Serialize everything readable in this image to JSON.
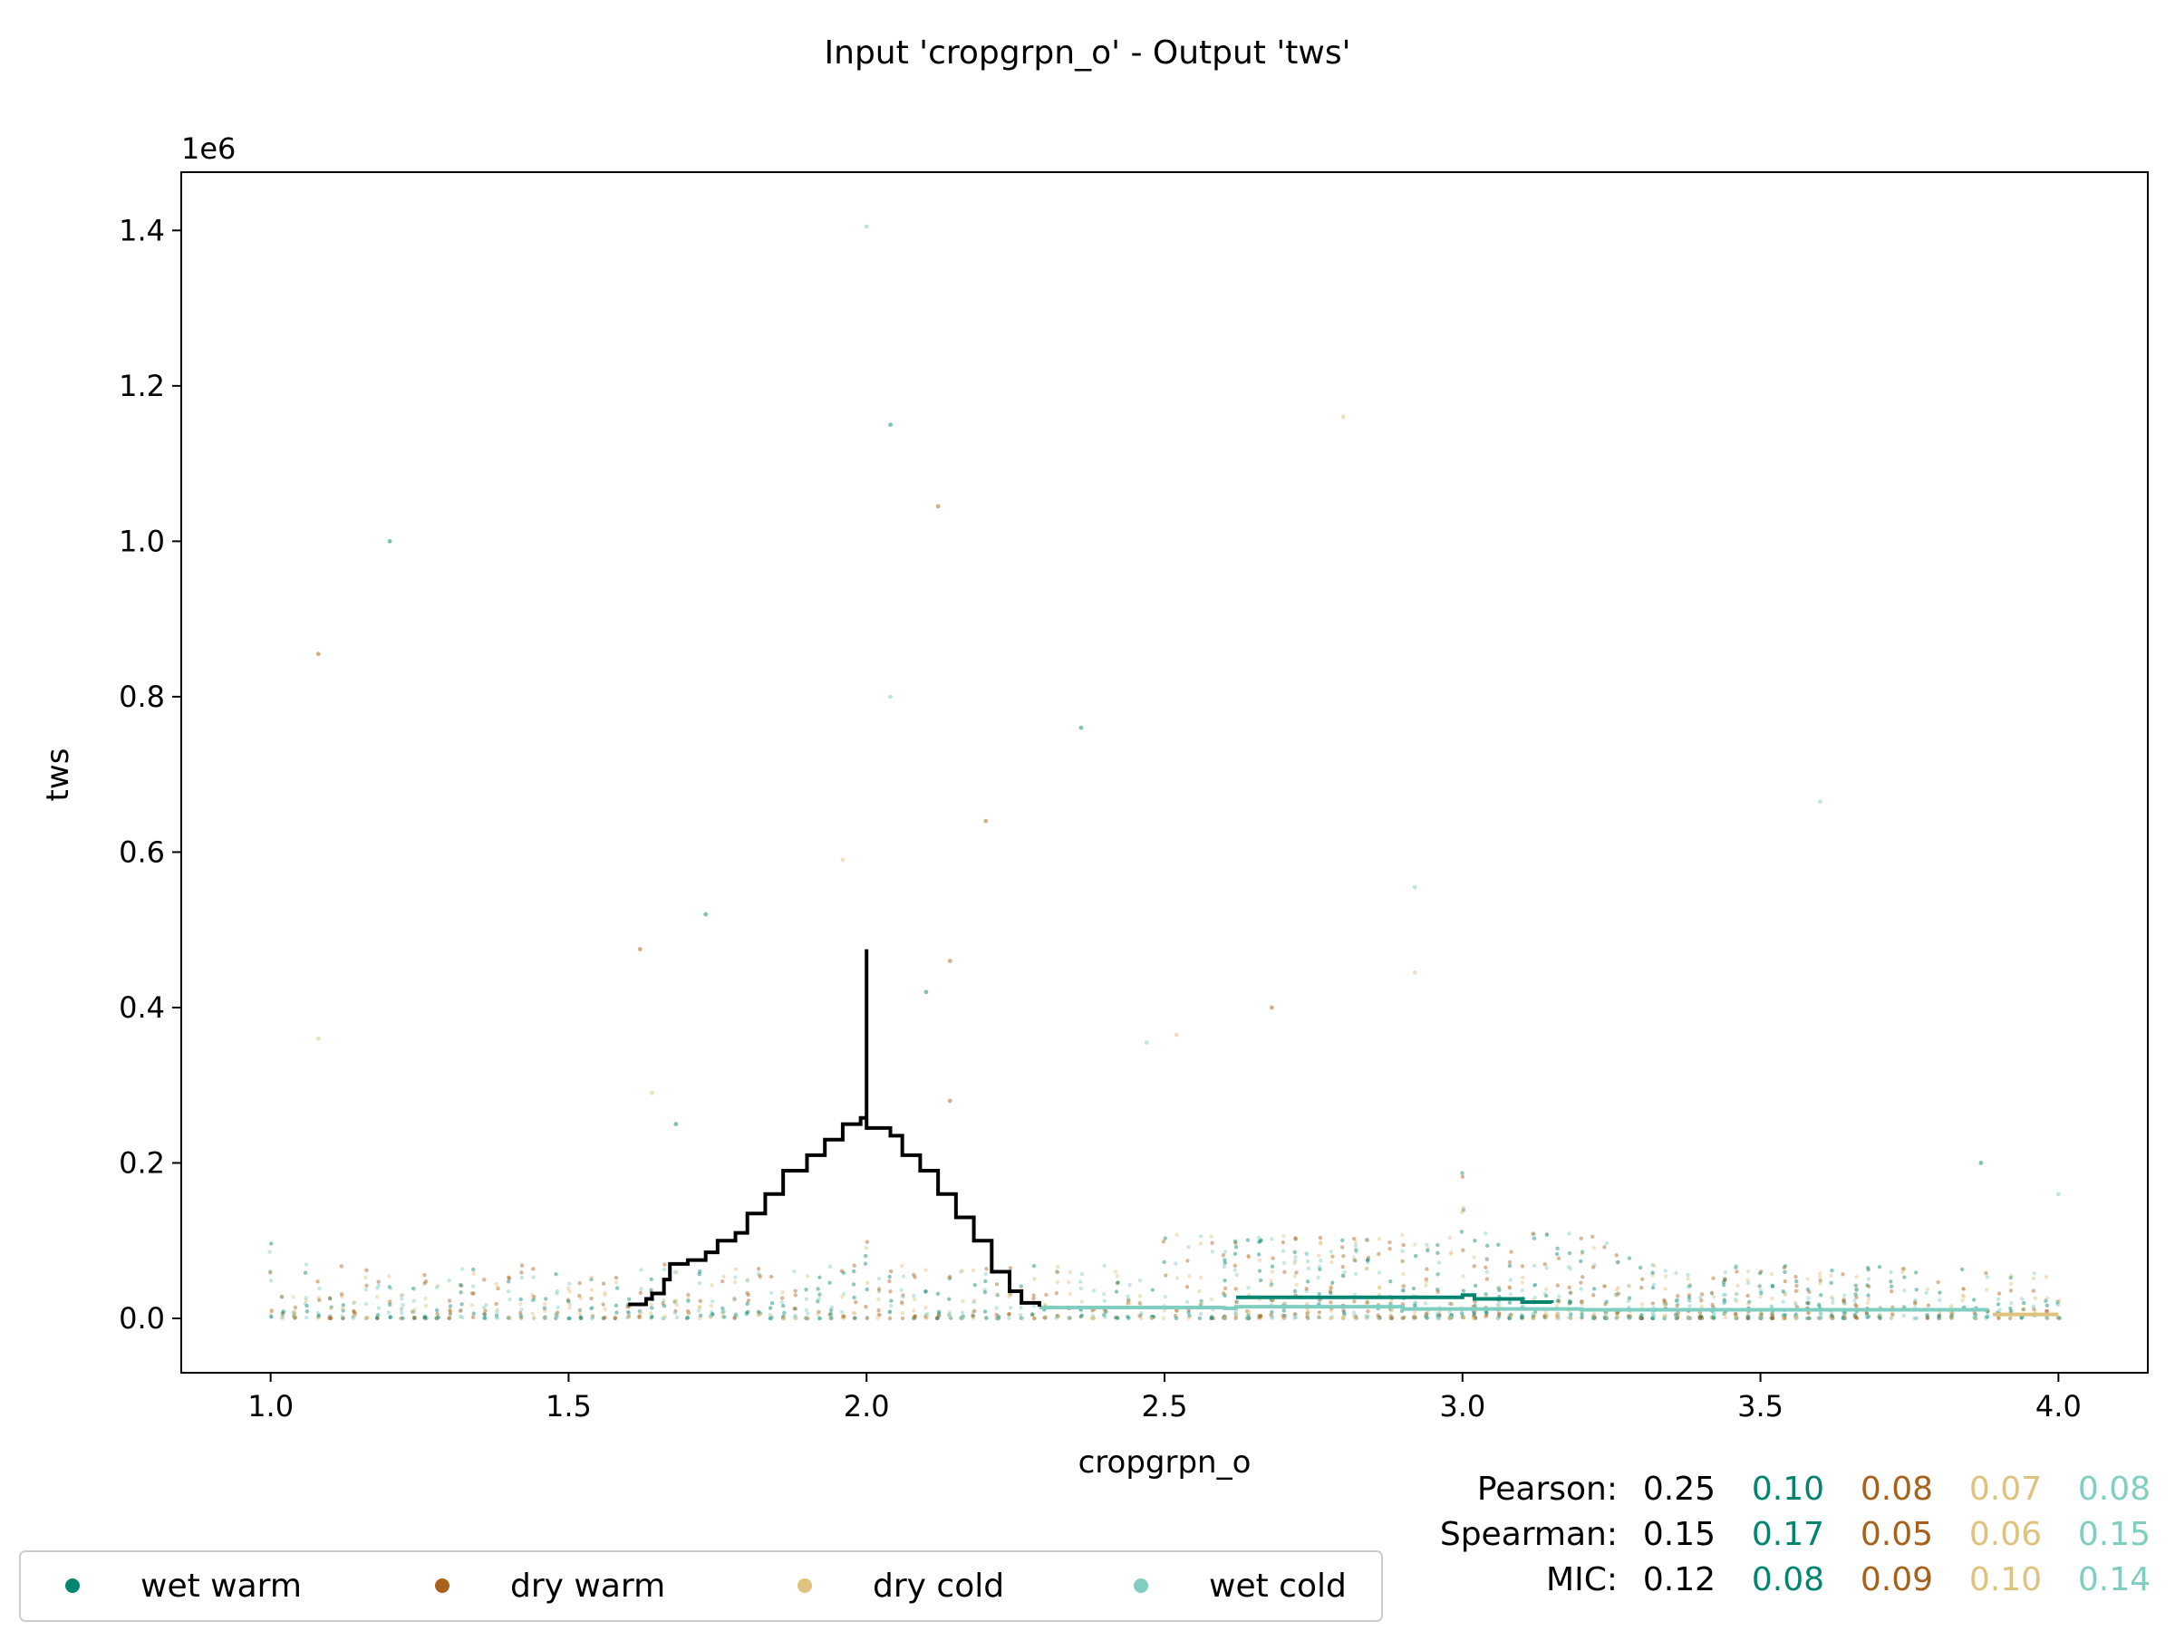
{
  "chart_data": {
    "type": "scatter",
    "title": "Input 'cropgrpn_o' - Output 'tws'",
    "xlabel": "cropgrpn_o",
    "ylabel": "tws",
    "y_scale_label": "1e6",
    "xlim": [
      0.85,
      4.15
    ],
    "ylim": [
      -0.07,
      1.475
    ],
    "x_ticks": [
      1.0,
      1.5,
      2.0,
      2.5,
      3.0,
      3.5,
      4.0
    ],
    "x_tick_labels": [
      "1.0",
      "1.5",
      "2.0",
      "2.5",
      "3.0",
      "3.5",
      "4.0"
    ],
    "y_ticks": [
      0.0,
      0.2,
      0.4,
      0.6,
      0.8,
      1.0,
      1.2,
      1.4
    ],
    "y_tick_labels": [
      "0.0",
      "0.2",
      "0.4",
      "0.6",
      "0.8",
      "1.0",
      "1.2",
      "1.4"
    ],
    "legend_position": "bottom-left",
    "colors": {
      "overall": "#000000",
      "wet_warm": "#018571",
      "dry_warm": "#a6611a",
      "dry_cold": "#dfc27d",
      "wet_cold": "#80cdc1"
    },
    "series": [
      {
        "name": "wet warm",
        "color": "#018571",
        "trend": [
          [
            2.62,
            0.027
          ],
          [
            2.8,
            0.027
          ],
          [
            2.98,
            0.027
          ],
          [
            3.0,
            0.03
          ],
          [
            3.02,
            0.025
          ],
          [
            3.1,
            0.021
          ],
          [
            3.15,
            0.02
          ]
        ]
      },
      {
        "name": "dry warm",
        "color": "#a6611a"
      },
      {
        "name": "dry cold",
        "color": "#dfc27d",
        "trend": [
          [
            3.89,
            0.005
          ],
          [
            4.0,
            0.005
          ]
        ]
      },
      {
        "name": "wet cold",
        "color": "#80cdc1",
        "trend": [
          [
            2.29,
            0.014
          ],
          [
            2.6,
            0.013
          ],
          [
            2.62,
            0.015
          ],
          [
            2.9,
            0.012
          ],
          [
            3.2,
            0.011
          ],
          [
            3.6,
            0.011
          ],
          [
            3.88,
            0.01
          ]
        ]
      }
    ],
    "overall_trend": [
      [
        1.6,
        0.018
      ],
      [
        1.63,
        0.025
      ],
      [
        1.64,
        0.032
      ],
      [
        1.66,
        0.05
      ],
      [
        1.67,
        0.07
      ],
      [
        1.7,
        0.075
      ],
      [
        1.73,
        0.085
      ],
      [
        1.75,
        0.1
      ],
      [
        1.78,
        0.11
      ],
      [
        1.8,
        0.135
      ],
      [
        1.83,
        0.16
      ],
      [
        1.86,
        0.19
      ],
      [
        1.9,
        0.21
      ],
      [
        1.93,
        0.23
      ],
      [
        1.96,
        0.25
      ],
      [
        1.99,
        0.258
      ],
      [
        2.0,
        0.258
      ],
      [
        2.0,
        0.475
      ],
      [
        2.0,
        0.245
      ],
      [
        2.04,
        0.235
      ],
      [
        2.06,
        0.21
      ],
      [
        2.09,
        0.19
      ],
      [
        2.12,
        0.16
      ],
      [
        2.15,
        0.13
      ],
      [
        2.18,
        0.1
      ],
      [
        2.21,
        0.06
      ],
      [
        2.24,
        0.035
      ],
      [
        2.26,
        0.02
      ],
      [
        2.29,
        0.015
      ]
    ],
    "outliers": [
      [
        1.2,
        1.0
      ],
      [
        1.08,
        0.855
      ],
      [
        1.08,
        0.36
      ],
      [
        2.0,
        1.405
      ],
      [
        2.04,
        1.15
      ],
      [
        2.12,
        1.045
      ],
      [
        2.8,
        1.16
      ],
      [
        2.04,
        0.8
      ],
      [
        2.36,
        0.76
      ],
      [
        2.2,
        0.64
      ],
      [
        1.96,
        0.59
      ],
      [
        3.6,
        0.665
      ],
      [
        1.73,
        0.52
      ],
      [
        2.14,
        0.46
      ],
      [
        2.92,
        0.445
      ],
      [
        2.92,
        0.555
      ],
      [
        1.68,
        0.25
      ],
      [
        1.62,
        0.475
      ],
      [
        2.52,
        0.365
      ],
      [
        2.47,
        0.355
      ],
      [
        2.1,
        0.42
      ],
      [
        2.14,
        0.28
      ],
      [
        1.64,
        0.29
      ],
      [
        4.0,
        0.16
      ],
      [
        3.87,
        0.2
      ],
      [
        2.68,
        0.4
      ]
    ],
    "stats_rows": [
      {
        "label": "Pearson:",
        "overall": "0.25",
        "values": [
          "0.10",
          "0.08",
          "0.07",
          "0.08"
        ]
      },
      {
        "label": "Spearman:",
        "overall": "0.15",
        "values": [
          "0.17",
          "0.05",
          "0.06",
          "0.15"
        ]
      },
      {
        "label": "MIC:",
        "overall": "0.12",
        "values": [
          "0.08",
          "0.09",
          "0.10",
          "0.14"
        ]
      }
    ]
  }
}
